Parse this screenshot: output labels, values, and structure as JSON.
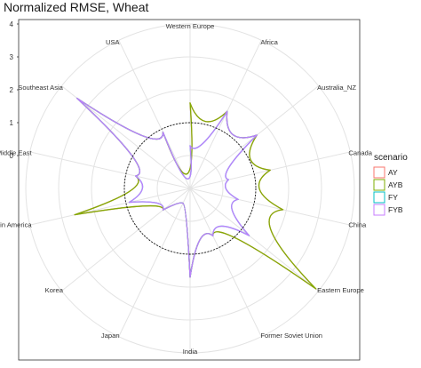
{
  "chart_data": {
    "type": "radar",
    "title": "Normalized RMSE, Wheat",
    "rlim": [
      -1,
      4
    ],
    "r_ticks": [
      0,
      1,
      2,
      3,
      4
    ],
    "reference_circle_value": 1,
    "grid": true,
    "legend_position": "right",
    "legend_title": "scenario",
    "categories": [
      "Western Europe",
      "Africa",
      "Australia_NZ",
      "Canada",
      "China",
      "Eastern Europe",
      "Former Soviet Union",
      "India",
      "Japan",
      "Korea",
      "Latin America",
      "Middle East",
      "Southeast Asia",
      "USA"
    ],
    "series": [
      {
        "name": "AY",
        "color": "#F8766D",
        "values": [
          1.6,
          1.6,
          1.6,
          1.5,
          1.9,
          3.9,
          0.6,
          1.7,
          -0.5,
          0.05,
          2.6,
          0.7,
          3.4,
          0.9
        ]
      },
      {
        "name": "AYB",
        "color": "#7CAE00",
        "values": [
          1.6,
          1.6,
          1.6,
          1.5,
          1.9,
          3.9,
          0.6,
          1.7,
          -0.5,
          0.05,
          2.6,
          0.7,
          3.4,
          0.9
        ]
      },
      {
        "name": "FY",
        "color": "#00BFC4",
        "values": [
          0.3,
          1.6,
          1.6,
          0.2,
          0.5,
          1.3,
          0.6,
          1.7,
          -0.5,
          0.05,
          0.9,
          0.7,
          3.4,
          0.9
        ]
      },
      {
        "name": "FYB",
        "color": "#C77CFF",
        "values": [
          0.3,
          1.6,
          1.6,
          0.2,
          0.5,
          1.3,
          0.6,
          1.7,
          -0.5,
          0.05,
          0.9,
          0.7,
          3.4,
          0.9
        ]
      }
    ]
  }
}
